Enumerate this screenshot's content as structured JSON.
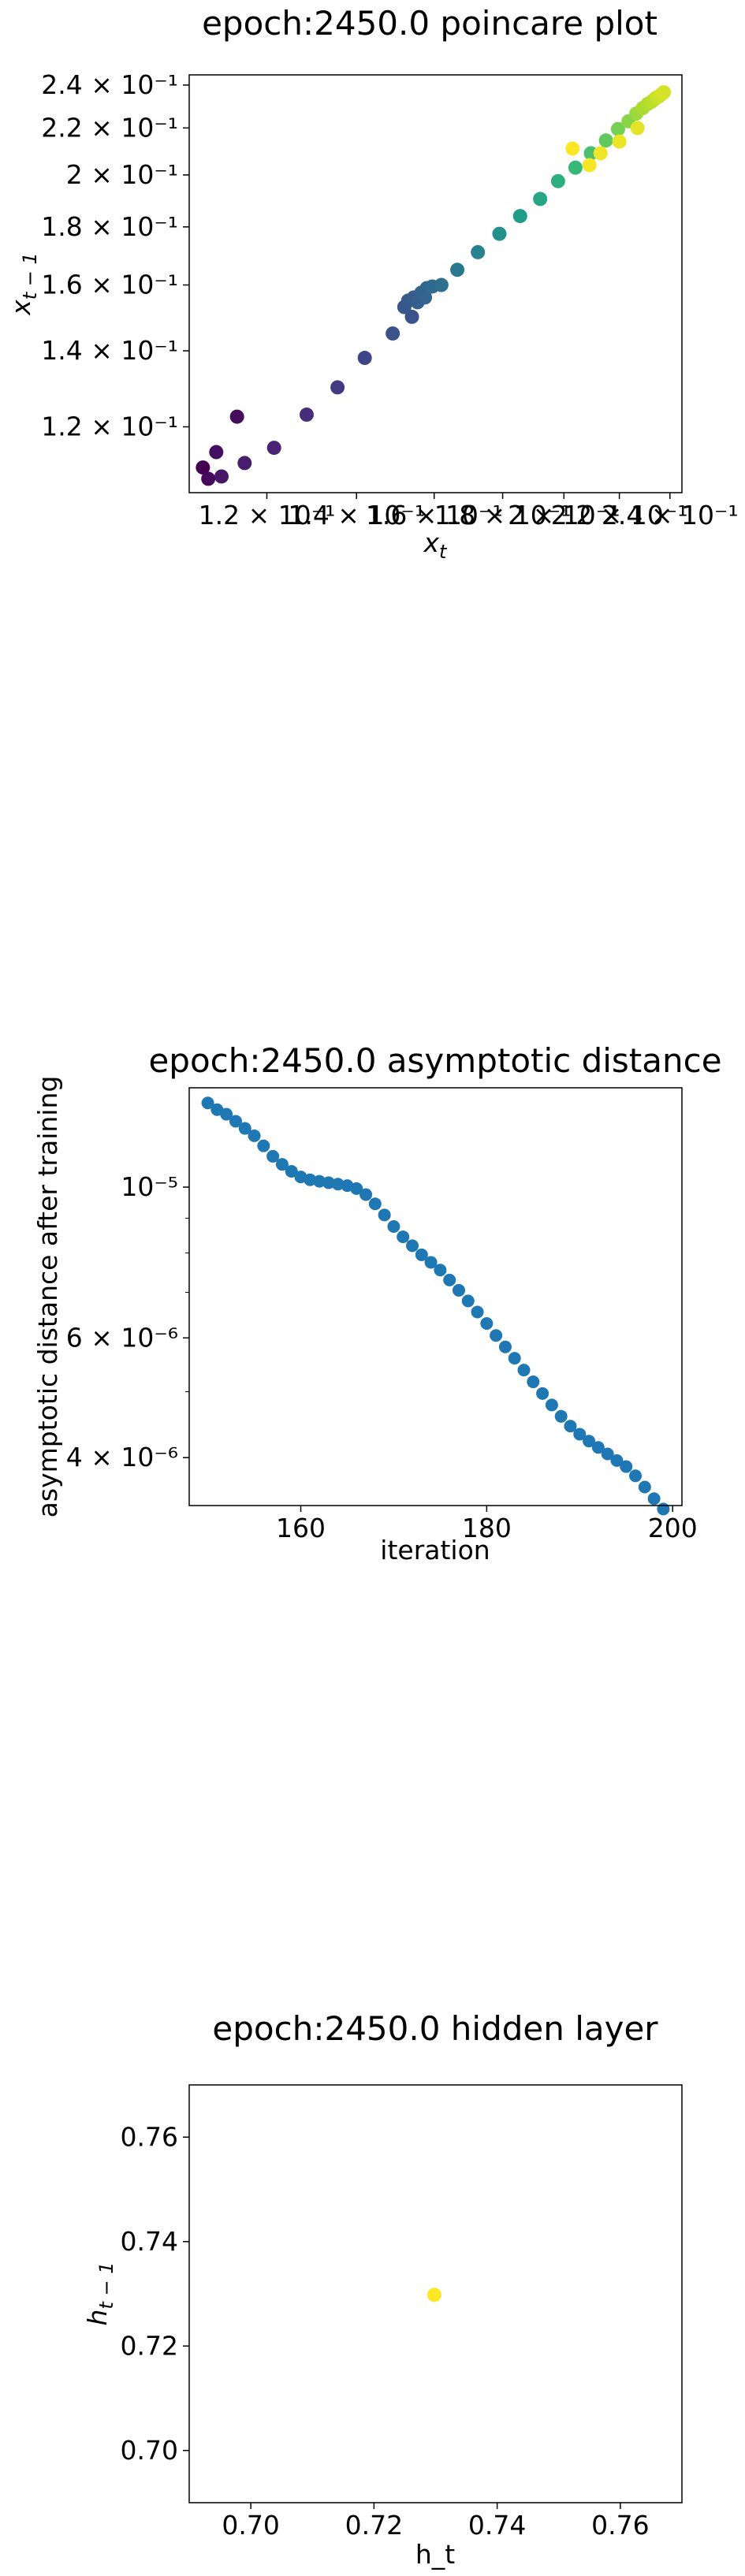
{
  "chart_data": [
    {
      "type": "scatter",
      "title": "epoch:2450.0 poincare plot",
      "xlabel": "x_t",
      "ylabel": "x_{t-1}",
      "xscale": "log",
      "yscale": "log",
      "xlim": [
        0.105,
        0.245
      ],
      "ylim": [
        0.105,
        0.245
      ],
      "grid": false,
      "colormap": "viridis",
      "xticks": [
        {
          "value": 0.12,
          "label": "1.2 × 10⁻¹"
        },
        {
          "value": 0.14,
          "label": "1.4 × 10⁻¹"
        },
        {
          "value": 0.16,
          "label": "1.6 × 10⁻¹"
        },
        {
          "value": 0.18,
          "label": "1.8 × 10⁻¹"
        },
        {
          "value": 0.2,
          "label": "2 × 10⁻¹"
        },
        {
          "value": 0.22,
          "label": "2.2 × 10⁻¹"
        },
        {
          "value": 0.24,
          "label": "2.4 × 10⁻¹"
        }
      ],
      "yticks": [
        {
          "value": 0.12,
          "label": "1.2 × 10⁻¹"
        },
        {
          "value": 0.14,
          "label": "1.4 × 10⁻¹"
        },
        {
          "value": 0.16,
          "label": "1.6 × 10⁻¹"
        },
        {
          "value": 0.18,
          "label": "1.8 × 10⁻¹"
        },
        {
          "value": 0.2,
          "label": "2 × 10⁻¹"
        },
        {
          "value": 0.22,
          "label": "2.2 × 10⁻¹"
        },
        {
          "value": 0.24,
          "label": "2.4 × 10⁻¹"
        }
      ],
      "points": [
        {
          "x": 0.1075,
          "y": 0.1105,
          "c": 0.0
        },
        {
          "x": 0.1085,
          "y": 0.108,
          "c": 0.02
        },
        {
          "x": 0.11,
          "y": 0.114,
          "c": 0.04
        },
        {
          "x": 0.111,
          "y": 0.1085,
          "c": 0.06
        },
        {
          "x": 0.114,
          "y": 0.1225,
          "c": 0.03
        },
        {
          "x": 0.1155,
          "y": 0.1115,
          "c": 0.08
        },
        {
          "x": 0.1215,
          "y": 0.115,
          "c": 0.1
        },
        {
          "x": 0.1285,
          "y": 0.123,
          "c": 0.13
        },
        {
          "x": 0.1355,
          "y": 0.13,
          "c": 0.17
        },
        {
          "x": 0.142,
          "y": 0.138,
          "c": 0.21
        },
        {
          "x": 0.149,
          "y": 0.145,
          "c": 0.25
        },
        {
          "x": 0.152,
          "y": 0.153,
          "c": 0.27
        },
        {
          "x": 0.153,
          "y": 0.155,
          "c": 0.28
        },
        {
          "x": 0.154,
          "y": 0.15,
          "c": 0.26
        },
        {
          "x": 0.1545,
          "y": 0.156,
          "c": 0.29
        },
        {
          "x": 0.1555,
          "y": 0.1545,
          "c": 0.3
        },
        {
          "x": 0.1565,
          "y": 0.1575,
          "c": 0.31
        },
        {
          "x": 0.1575,
          "y": 0.156,
          "c": 0.32
        },
        {
          "x": 0.158,
          "y": 0.159,
          "c": 0.33
        },
        {
          "x": 0.1595,
          "y": 0.1595,
          "c": 0.34
        },
        {
          "x": 0.162,
          "y": 0.16,
          "c": 0.36
        },
        {
          "x": 0.1665,
          "y": 0.165,
          "c": 0.4
        },
        {
          "x": 0.1725,
          "y": 0.171,
          "c": 0.45
        },
        {
          "x": 0.179,
          "y": 0.1775,
          "c": 0.5
        },
        {
          "x": 0.1855,
          "y": 0.184,
          "c": 0.55
        },
        {
          "x": 0.192,
          "y": 0.1905,
          "c": 0.59
        },
        {
          "x": 0.198,
          "y": 0.1975,
          "c": 0.63
        },
        {
          "x": 0.204,
          "y": 0.203,
          "c": 0.67
        },
        {
          "x": 0.2095,
          "y": 0.209,
          "c": 0.71
        },
        {
          "x": 0.215,
          "y": 0.2145,
          "c": 0.75
        },
        {
          "x": 0.2195,
          "y": 0.2195,
          "c": 0.79
        },
        {
          "x": 0.2235,
          "y": 0.223,
          "c": 0.82
        },
        {
          "x": 0.2265,
          "y": 0.2265,
          "c": 0.85
        },
        {
          "x": 0.229,
          "y": 0.229,
          "c": 0.87
        },
        {
          "x": 0.231,
          "y": 0.231,
          "c": 0.88
        },
        {
          "x": 0.2325,
          "y": 0.232,
          "c": 0.89
        },
        {
          "x": 0.2335,
          "y": 0.233,
          "c": 0.9
        },
        {
          "x": 0.2345,
          "y": 0.234,
          "c": 0.91
        },
        {
          "x": 0.2355,
          "y": 0.2345,
          "c": 0.92
        },
        {
          "x": 0.236,
          "y": 0.235,
          "c": 0.93
        },
        {
          "x": 0.2365,
          "y": 0.2355,
          "c": 0.93
        },
        {
          "x": 0.237,
          "y": 0.236,
          "c": 0.94
        },
        {
          "x": 0.2375,
          "y": 0.2365,
          "c": 0.94
        },
        {
          "x": 0.227,
          "y": 0.22,
          "c": 0.96
        },
        {
          "x": 0.22,
          "y": 0.214,
          "c": 0.97
        },
        {
          "x": 0.213,
          "y": 0.209,
          "c": 0.98
        },
        {
          "x": 0.209,
          "y": 0.204,
          "c": 0.99
        },
        {
          "x": 0.203,
          "y": 0.211,
          "c": 1.0
        }
      ]
    },
    {
      "type": "scatter",
      "title": "epoch:2450.0 asymptotic distance",
      "xlabel": "iteration",
      "ylabel": "asymptotic distance after training",
      "yscale": "log",
      "xlim": [
        148,
        201
      ],
      "ylim": [
        3.4e-06,
        1.4e-05
      ],
      "grid": false,
      "color": "#1f77b4",
      "xticks": [
        {
          "value": 160,
          "label": "160"
        },
        {
          "value": 180,
          "label": "180"
        },
        {
          "value": 200,
          "label": "200"
        }
      ],
      "yticks": [
        {
          "value": 1e-05,
          "label": "10⁻⁵"
        },
        {
          "value": 6e-06,
          "label": "6 × 10⁻⁶"
        },
        {
          "value": 4e-06,
          "label": "4 × 10⁻⁶"
        }
      ],
      "x": [
        150,
        151,
        152,
        153,
        154,
        155,
        156,
        157,
        158,
        159,
        160,
        161,
        162,
        163,
        164,
        165,
        166,
        167,
        168,
        169,
        170,
        171,
        172,
        173,
        174,
        175,
        176,
        177,
        178,
        179,
        180,
        181,
        182,
        183,
        184,
        185,
        186,
        187,
        188,
        189,
        190,
        191,
        192,
        193,
        194,
        195,
        196,
        197,
        198,
        199
      ],
      "y": [
        1.33e-05,
        1.3e-05,
        1.28e-05,
        1.25e-05,
        1.22e-05,
        1.19e-05,
        1.15e-05,
        1.11e-05,
        1.08e-05,
        1.055e-05,
        1.035e-05,
        1.025e-05,
        1.02e-05,
        1.015e-05,
        1.01e-05,
        1.005e-05,
        9.95e-06,
        9.75e-06,
        9.45e-06,
        9.1e-06,
        8.75e-06,
        8.45e-06,
        8.2e-06,
        7.95e-06,
        7.75e-06,
        7.55e-06,
        7.3e-06,
        7.05e-06,
        6.8e-06,
        6.55e-06,
        6.3e-06,
        6.05e-06,
        5.82e-06,
        5.6e-06,
        5.38e-06,
        5.17e-06,
        4.97e-06,
        4.78e-06,
        4.6e-06,
        4.45e-06,
        4.33e-06,
        4.23e-06,
        4.14e-06,
        4.05e-06,
        3.96e-06,
        3.88e-06,
        3.76e-06,
        3.62e-06,
        3.48e-06,
        3.36e-06
      ]
    },
    {
      "type": "scatter",
      "title": "epoch:2450.0 hidden layer",
      "xlabel": "h_t",
      "ylabel": "h_{t-1}",
      "xlim": [
        0.69,
        0.77
      ],
      "ylim": [
        0.69,
        0.77
      ],
      "grid": false,
      "color": "#fde725",
      "xticks": [
        {
          "value": 0.7,
          "label": "0.70"
        },
        {
          "value": 0.72,
          "label": "0.72"
        },
        {
          "value": 0.74,
          "label": "0.74"
        },
        {
          "value": 0.76,
          "label": "0.76"
        }
      ],
      "yticks": [
        {
          "value": 0.7,
          "label": "0.70"
        },
        {
          "value": 0.72,
          "label": "0.72"
        },
        {
          "value": 0.74,
          "label": "0.74"
        },
        {
          "value": 0.76,
          "label": "0.76"
        }
      ],
      "points": [
        {
          "x": 0.7298,
          "y": 0.7298
        }
      ]
    }
  ]
}
